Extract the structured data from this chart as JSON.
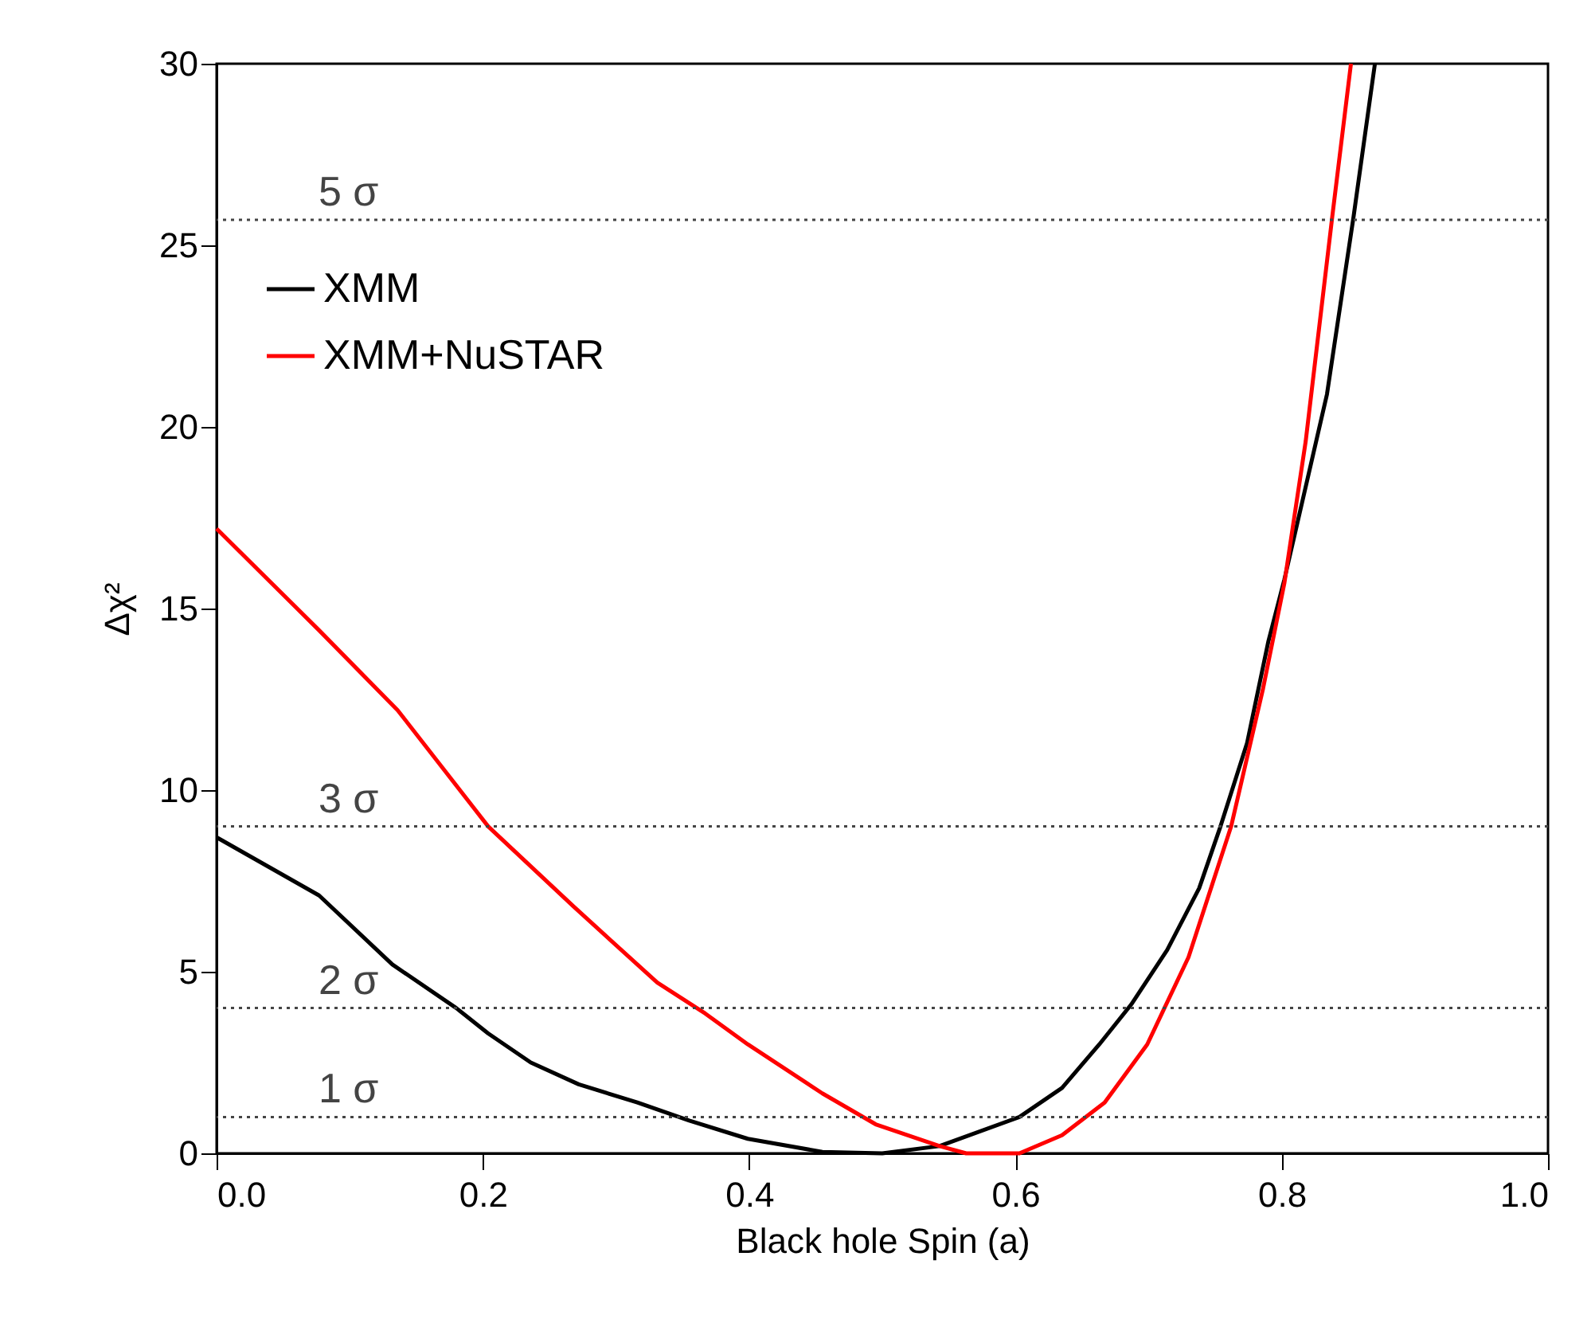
{
  "chart_data": {
    "type": "line",
    "xlabel": "Black hole Spin (a)",
    "ylabel": "Δχ²",
    "xlim": [
      0.0,
      1.0
    ],
    "xticks": [
      {
        "value": 0,
        "label": "0.0"
      },
      0.2,
      0.4,
      0.6,
      0.8,
      {
        "value": 1,
        "label": "1.0"
      }
    ],
    "ylim": [
      0,
      30
    ],
    "yticks": [
      0,
      5,
      10,
      15,
      20,
      25,
      30
    ],
    "grid": false,
    "legend": "top left",
    "line_style": "solid",
    "marker": "none",
    "series": [
      {
        "name": "XMM",
        "color": "#000000",
        "x": [
          0,
          0.077,
          0.132,
          0.18,
          0.204,
          0.236,
          0.272,
          0.316,
          0.355,
          0.399,
          0.455,
          0.5,
          0.543,
          0.603,
          0.635,
          0.663,
          0.687,
          0.714,
          0.738,
          0.754,
          0.774,
          0.79,
          0.802,
          0.834,
          0.854,
          0.87
        ],
        "values": [
          8.7,
          7.1,
          5.2,
          4.0,
          3.3,
          2.5,
          1.9,
          1.4,
          0.9,
          0.4,
          0.04,
          0.0,
          0.2,
          1.0,
          1.8,
          3.0,
          4.1,
          5.6,
          7.3,
          9.0,
          11.3,
          14.1,
          15.8,
          20.9,
          25.8,
          30
        ]
      },
      {
        "name": "XMM+NuSTAR",
        "color": "#ff0000",
        "x": [
          0,
          0.077,
          0.136,
          0.204,
          0.268,
          0.331,
          0.367,
          0.399,
          0.455,
          0.495,
          0.543,
          0.563,
          0.603,
          0.635,
          0.667,
          0.699,
          0.73,
          0.762,
          0.786,
          0.802,
          0.818,
          0.838,
          0.852
        ],
        "values": [
          17.2,
          14.4,
          12.2,
          9.0,
          6.8,
          4.7,
          3.85,
          3.0,
          1.65,
          0.8,
          0.2,
          0.0,
          0.0,
          0.5,
          1.4,
          3.0,
          5.4,
          9.0,
          12.8,
          15.7,
          19.6,
          25.8,
          30
        ]
      }
    ],
    "ref_lines": [
      {
        "axis": "y",
        "value": 1,
        "label": "1 σ",
        "color": "#444444",
        "line_style": "dotted"
      },
      {
        "axis": "y",
        "value": 4,
        "label": "2 σ",
        "color": "#444444",
        "line_style": "dotted"
      },
      {
        "axis": "y",
        "value": 9,
        "label": "3 σ",
        "color": "#444444",
        "line_style": "dotted"
      },
      {
        "axis": "y",
        "value": 25.7,
        "label": "5 σ",
        "color": "#444444",
        "line_style": "dotted"
      }
    ]
  }
}
